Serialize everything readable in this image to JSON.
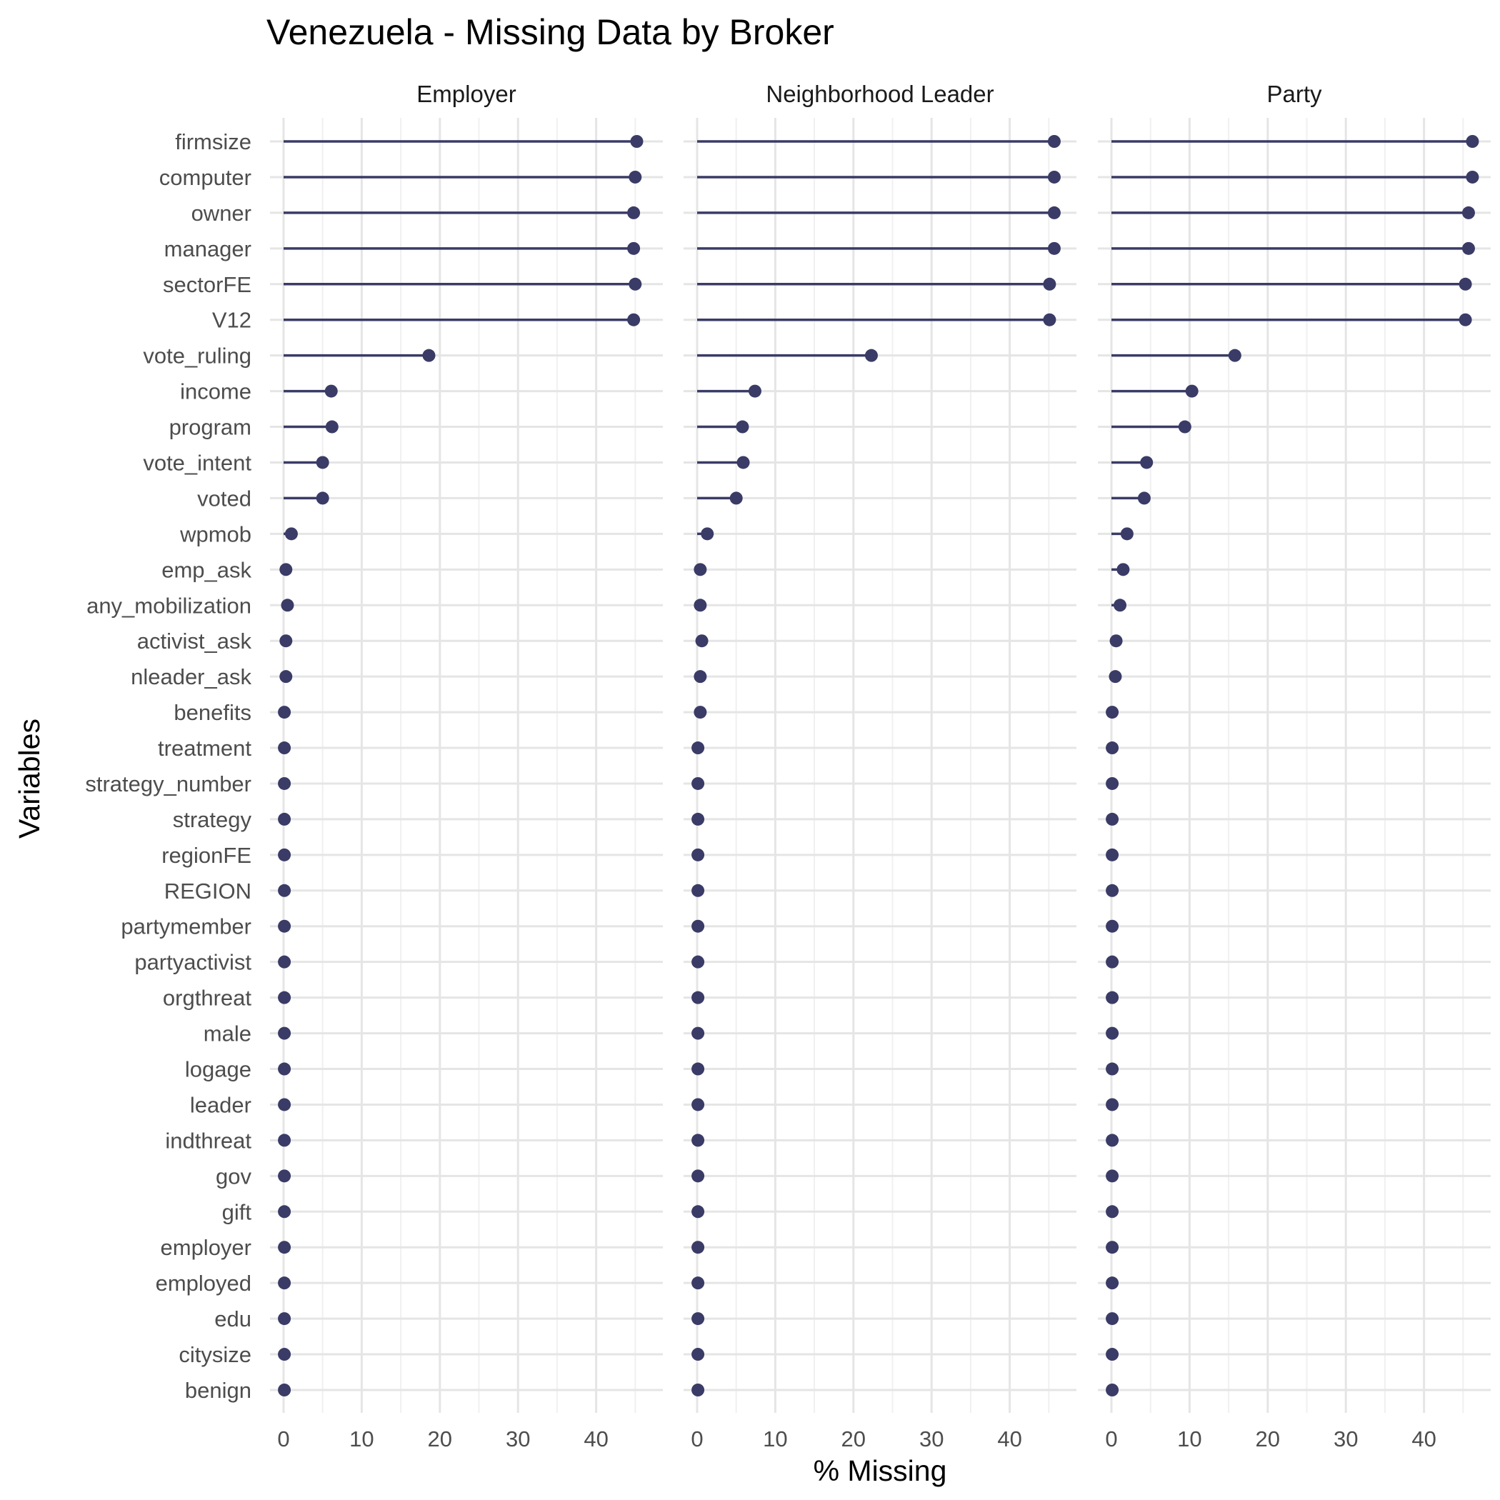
{
  "chart_data": {
    "type": "lollipop",
    "title": "Venezuela - Missing Data by Broker",
    "xlabel": "% Missing",
    "ylabel": "Variables",
    "xlim": [
      0,
      48
    ],
    "xticks": [
      0,
      10,
      20,
      30,
      40
    ],
    "grid": true,
    "colors": {
      "series": "#3a3b66"
    },
    "variables": [
      "firmsize",
      "computer",
      "owner",
      "manager",
      "sectorFE",
      "V12",
      "vote_ruling",
      "income",
      "program",
      "vote_intent",
      "voted",
      "wpmob",
      "emp_ask",
      "any_mobilization",
      "activist_ask",
      "nleader_ask",
      "benefits",
      "treatment",
      "strategy_number",
      "strategy",
      "regionFE",
      "REGION",
      "partymember",
      "partyactivist",
      "orgthreat",
      "male",
      "logage",
      "leader",
      "indthreat",
      "gov",
      "gift",
      "employer",
      "employed",
      "edu",
      "citysize",
      "benign"
    ],
    "panels": [
      {
        "name": "Employer",
        "values": [
          45.2,
          45.0,
          44.8,
          44.8,
          45.0,
          44.8,
          18.6,
          6.1,
          6.2,
          5.0,
          5.0,
          1.0,
          0.3,
          0.5,
          0.3,
          0.3,
          0.1,
          0.1,
          0.1,
          0.1,
          0.1,
          0.1,
          0.1,
          0.1,
          0.1,
          0.1,
          0.1,
          0.1,
          0.1,
          0.1,
          0.1,
          0.1,
          0.1,
          0.1,
          0.1,
          0.1
        ]
      },
      {
        "name": "Neighborhood Leader",
        "values": [
          45.7,
          45.7,
          45.7,
          45.7,
          45.1,
          45.1,
          22.3,
          7.4,
          5.8,
          5.9,
          5.0,
          1.3,
          0.4,
          0.4,
          0.6,
          0.4,
          0.4,
          0.1,
          0.1,
          0.1,
          0.1,
          0.1,
          0.1,
          0.1,
          0.1,
          0.1,
          0.1,
          0.1,
          0.1,
          0.1,
          0.1,
          0.1,
          0.1,
          0.1,
          0.1,
          0.1
        ]
      },
      {
        "name": "Party",
        "values": [
          46.2,
          46.2,
          45.7,
          45.7,
          45.3,
          45.3,
          15.8,
          10.3,
          9.4,
          4.5,
          4.2,
          2.0,
          1.5,
          1.1,
          0.6,
          0.5,
          0.1,
          0.1,
          0.1,
          0.1,
          0.1,
          0.1,
          0.1,
          0.1,
          0.1,
          0.1,
          0.1,
          0.1,
          0.1,
          0.1,
          0.1,
          0.1,
          0.1,
          0.1,
          0.1,
          0.1
        ]
      }
    ]
  }
}
